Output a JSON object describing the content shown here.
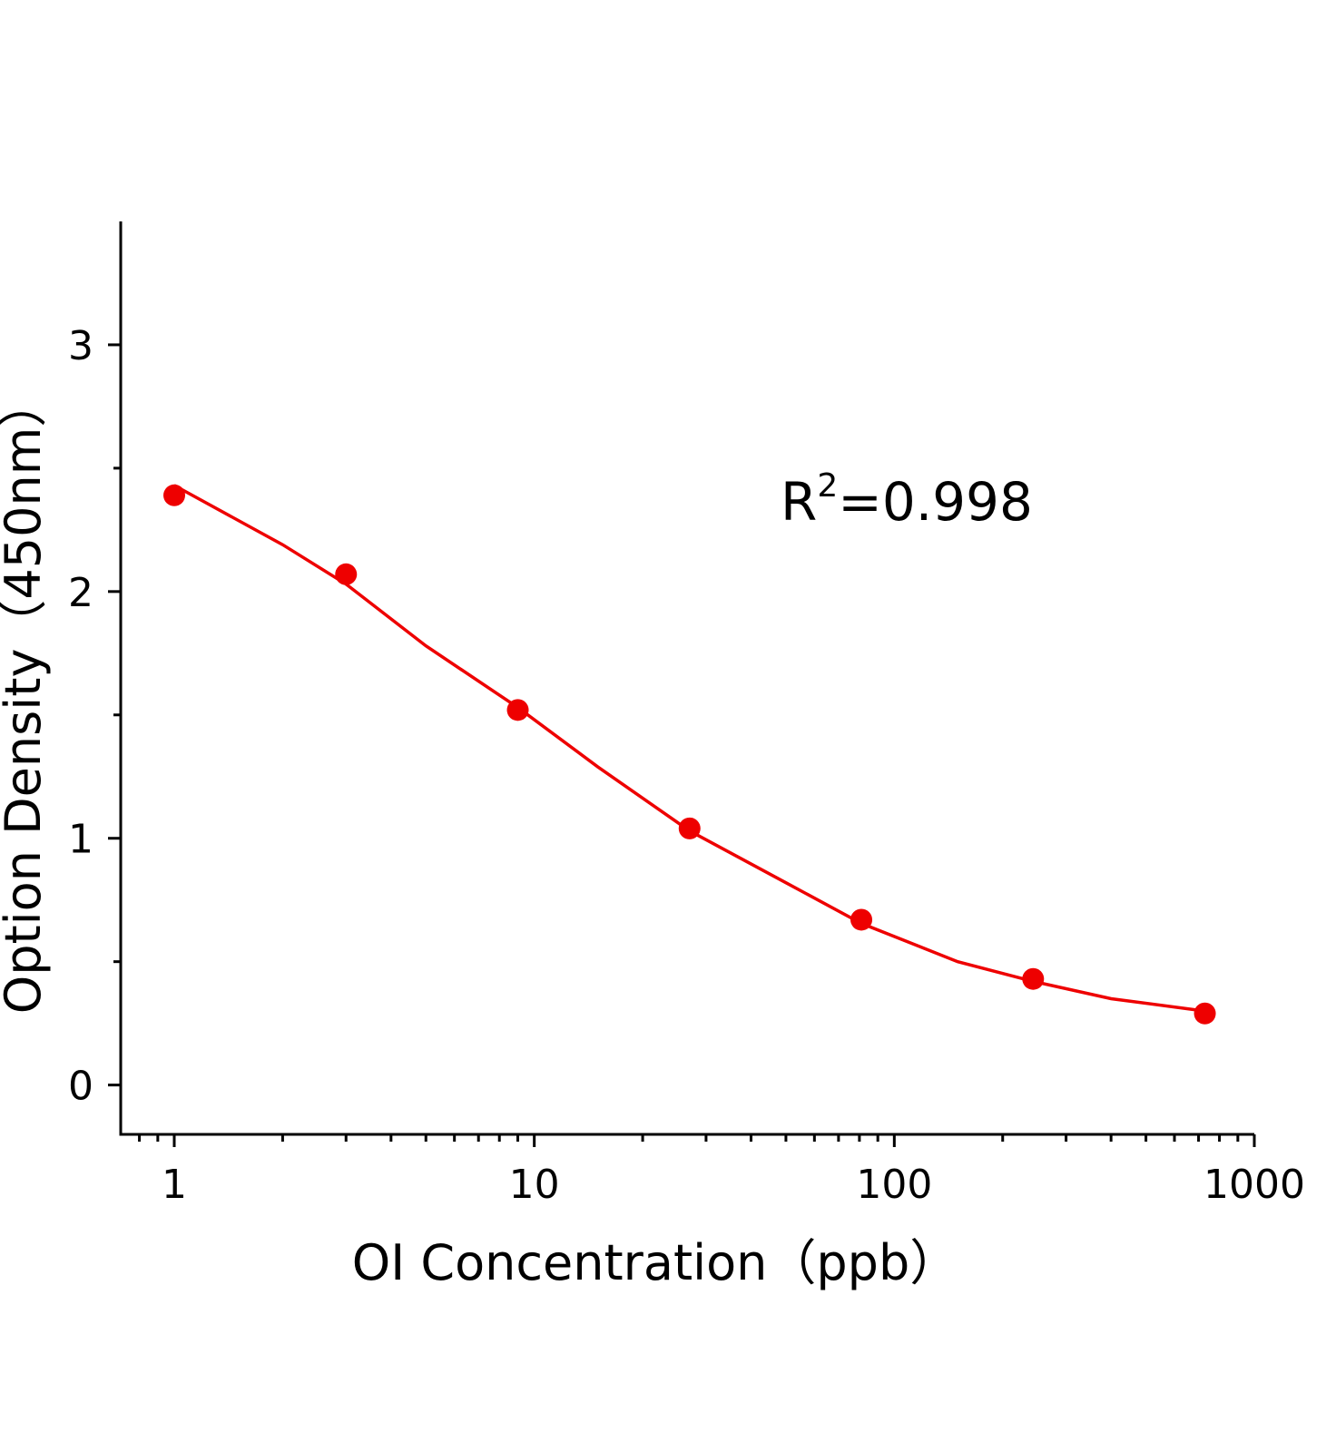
{
  "chart_data": {
    "type": "scatter",
    "x_label": "OI Concentration（ppb）",
    "y_label": "Option Density（450nm）",
    "annotation": [
      "R",
      "2",
      "=0.998"
    ],
    "x": [
      1,
      3,
      9,
      27,
      81,
      243,
      729
    ],
    "values": [
      2.39,
      2.07,
      1.52,
      1.04,
      0.67,
      0.43,
      0.29
    ],
    "color": "#ee0000",
    "curve": {
      "x": [
        1,
        2,
        3,
        5,
        9,
        15,
        27,
        50,
        81,
        150,
        243,
        400,
        729
      ],
      "values": [
        2.43,
        2.19,
        2.03,
        1.78,
        1.53,
        1.29,
        1.03,
        0.82,
        0.655,
        0.5,
        0.42,
        0.35,
        0.3
      ]
    },
    "xlog": true,
    "xlim": [
      0.71,
      1000
    ],
    "ylim": [
      -0.2,
      3.5
    ],
    "xticks": [
      1,
      10,
      100,
      1000
    ],
    "xminorticks": [
      0.8,
      0.9,
      2,
      3,
      4,
      5,
      6,
      7,
      8,
      9,
      20,
      30,
      40,
      50,
      60,
      70,
      80,
      90,
      200,
      300,
      400,
      500,
      600,
      700,
      800,
      900
    ],
    "yticks": [
      0,
      1,
      2,
      3
    ],
    "yminorticks": [
      0.5,
      1.5,
      2.5
    ]
  }
}
